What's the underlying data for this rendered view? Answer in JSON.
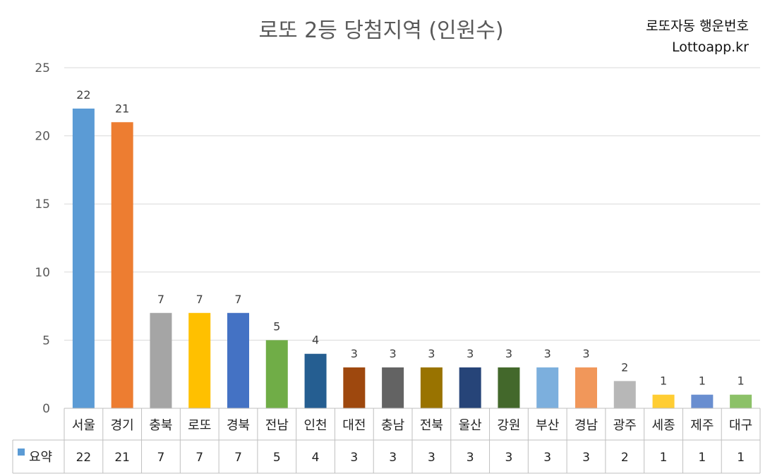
{
  "header": {
    "title": "로또 2등 당첨지역 (인원수)",
    "brand_line1": "로또자동 행운번호",
    "brand_line2": "Lottoapp.kr"
  },
  "chart_data": {
    "type": "bar",
    "title": "로또 2등 당첨지역 (인원수)",
    "categories": [
      "서울",
      "경기",
      "충북",
      "로또",
      "경북",
      "전남",
      "인천",
      "대전",
      "충남",
      "전북",
      "울산",
      "강원",
      "부산",
      "경남",
      "광주",
      "세종",
      "제주",
      "대구"
    ],
    "values": [
      22,
      21,
      7,
      7,
      7,
      5,
      4,
      3,
      3,
      3,
      3,
      3,
      3,
      3,
      2,
      1,
      1,
      1
    ],
    "colors": [
      "#5B9BD5",
      "#ED7D31",
      "#A5A5A5",
      "#FFC000",
      "#4472C4",
      "#70AD47",
      "#255E91",
      "#9E480E",
      "#636363",
      "#997300",
      "#264478",
      "#43682B",
      "#7CAFDD",
      "#F1975A",
      "#B7B7B7",
      "#FFCD33",
      "#698ED0",
      "#8CC168"
    ],
    "series": [
      {
        "name": "요약",
        "values": [
          22,
          21,
          7,
          7,
          7,
          5,
          4,
          3,
          3,
          3,
          3,
          3,
          3,
          3,
          2,
          1,
          1,
          1
        ]
      }
    ],
    "ylim": [
      0,
      25
    ],
    "yticks": [
      0,
      5,
      10,
      15,
      20,
      25
    ],
    "grid": true,
    "data_table": true,
    "legend_key_color": "#5B9BD5"
  }
}
